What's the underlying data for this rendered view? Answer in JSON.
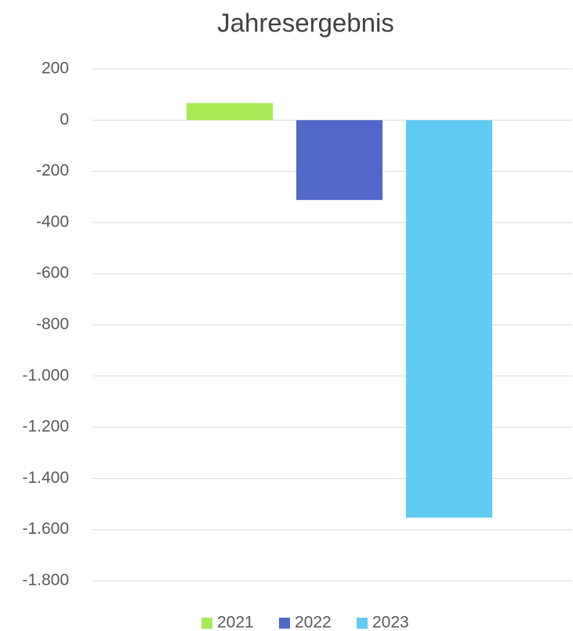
{
  "chart_data": {
    "type": "bar",
    "title": "Jahresergebnis",
    "categories": [
      null
    ],
    "series": [
      {
        "name": "2021",
        "color": "#a6ea56",
        "values": [
          67
        ]
      },
      {
        "name": "2022",
        "color": "#4f68c9",
        "values": [
          -312
        ]
      },
      {
        "name": "2023",
        "color": "#5fcbf2",
        "values": [
          -1553
        ]
      }
    ],
    "ylim": [
      -1800,
      200
    ],
    "yticks": [
      200,
      0,
      -200,
      -400,
      -600,
      -800,
      {
        "value": -1000,
        "label": "-1.000"
      },
      {
        "value": -1200,
        "label": "-1.200"
      },
      {
        "value": -1400,
        "label": "-1.400"
      },
      {
        "value": -1600,
        "label": "-1.600"
      },
      {
        "value": -1800,
        "label": "-1.800"
      }
    ],
    "grid": true,
    "legend": "bottom"
  }
}
